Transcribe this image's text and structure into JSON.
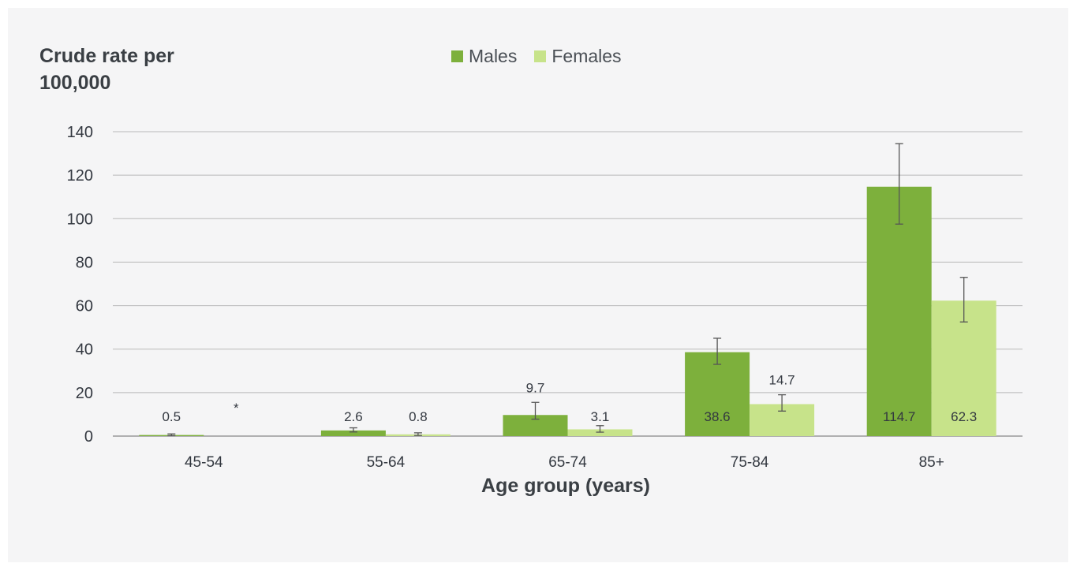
{
  "chart_data": {
    "type": "bar",
    "ylabel": "Crude rate per 100,000",
    "xlabel": "Age group (years)",
    "categories": [
      "45-54",
      "55-64",
      "65-74",
      "75-84",
      "85+"
    ],
    "ylim": [
      0,
      140
    ],
    "yticks": [
      0,
      20,
      40,
      60,
      80,
      100,
      120,
      140
    ],
    "grid": true,
    "legend_position": "top-center",
    "series": [
      {
        "name": "Males",
        "color": "#7db03c",
        "values": [
          0.5,
          2.6,
          9.7,
          38.6,
          114.7
        ],
        "labels": [
          "0.5",
          "2.6",
          "9.7",
          "38.6",
          "114.7"
        ],
        "error_low": [
          0.2,
          1.9,
          7.8,
          33.0,
          97.5
        ],
        "error_high": [
          1.0,
          3.8,
          15.5,
          45.0,
          134.5
        ]
      },
      {
        "name": "Females",
        "color": "#c7e38a",
        "values": [
          null,
          0.8,
          3.1,
          14.7,
          62.3
        ],
        "labels": [
          "*",
          "0.8",
          "3.1",
          "14.7",
          "62.3"
        ],
        "error_low": [
          null,
          0.3,
          1.8,
          11.5,
          52.5
        ],
        "error_high": [
          null,
          1.5,
          4.8,
          19.0,
          73.0
        ]
      }
    ]
  }
}
